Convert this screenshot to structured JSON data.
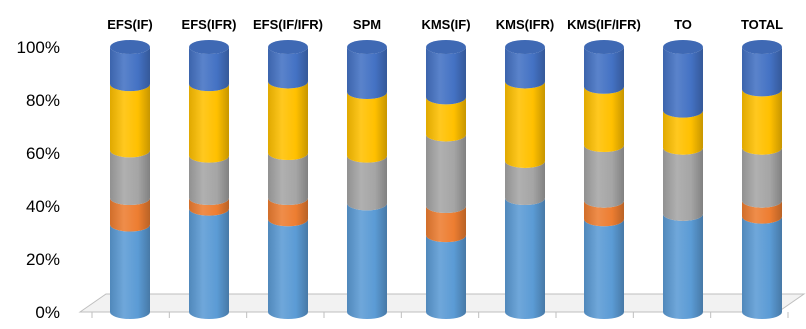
{
  "chart_data": {
    "type": "bar",
    "stacked": true,
    "percent_stacked": true,
    "style": "3d-cylinder",
    "title": "",
    "xlabel": "",
    "ylabel": "",
    "ylim": [
      0,
      100
    ],
    "y_tick_labels": [
      "0%",
      "20%",
      "40%",
      "60%",
      "80%",
      "100%"
    ],
    "y_tick_values": [
      0,
      20,
      40,
      60,
      80,
      100
    ],
    "grid": false,
    "legend": "none",
    "categories": [
      "EFS(IF)",
      "EFS(IFR)",
      "EFS(IF/IFR)",
      "SPM",
      "KMS(IF)",
      "KMS(IFR)",
      "KMS(IF/IFR)",
      "TO",
      "TOTAL"
    ],
    "series": [
      {
        "color": "#5B9BD5",
        "values": [
          33,
          39,
          35,
          41,
          29,
          43,
          35,
          37,
          36
        ]
      },
      {
        "color": "#ED7D31",
        "values": [
          10,
          4,
          8,
          0,
          11,
          0,
          7,
          0,
          6
        ]
      },
      {
        "color": "#A5A5A5",
        "values": [
          18,
          16,
          17,
          18,
          27,
          14,
          21,
          25,
          20
        ]
      },
      {
        "color": "#FFC000",
        "values": [
          25,
          27,
          27,
          24,
          14,
          30,
          22,
          14,
          22
        ]
      },
      {
        "color": "#4472C4",
        "values": [
          14,
          14,
          13,
          17,
          19,
          13,
          15,
          24,
          16
        ]
      }
    ]
  }
}
